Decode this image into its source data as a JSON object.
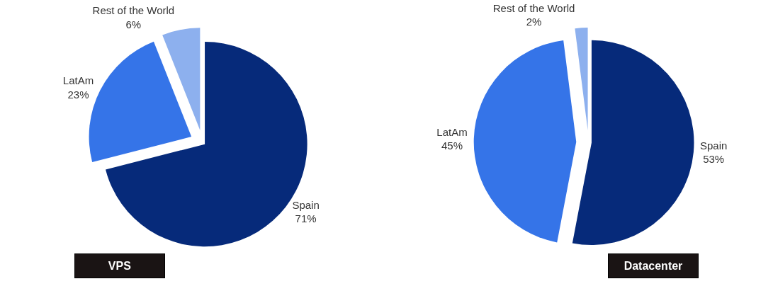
{
  "chart_data": [
    {
      "type": "pie",
      "title": "VPS",
      "categories": [
        "Spain",
        "LatAm",
        "Rest of the World"
      ],
      "values": [
        71,
        23,
        6
      ],
      "value_labels": [
        "71%",
        "23%",
        "6%"
      ],
      "colors": [
        "#062a7a",
        "#3574e8",
        "#8db0ee"
      ]
    },
    {
      "type": "pie",
      "title": "Datacenter",
      "categories": [
        "Spain",
        "LatAm",
        "Rest of the World"
      ],
      "values": [
        53,
        45,
        2
      ],
      "value_labels": [
        "53%",
        "45%",
        "2%"
      ],
      "colors": [
        "#062a7a",
        "#3574e8",
        "#8db0ee"
      ]
    }
  ]
}
